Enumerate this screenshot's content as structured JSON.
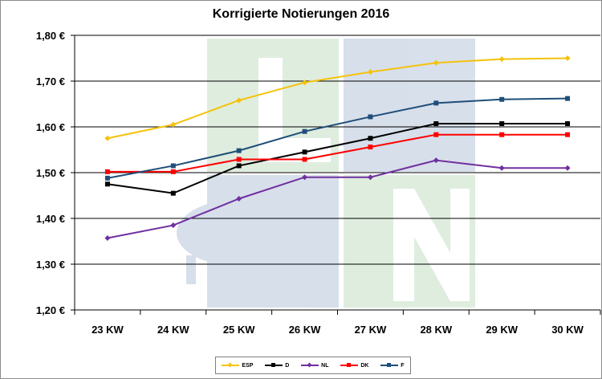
{
  "chart_data": {
    "type": "line",
    "title": "Korrigierte Notierungen 2016",
    "categories": [
      "23 KW",
      "24 KW",
      "25 KW",
      "26 KW",
      "27 KW",
      "28 KW",
      "29 KW",
      "30 KW"
    ],
    "ylim": [
      1.2,
      1.8
    ],
    "yticks": [
      "1,20 €",
      "1,30 €",
      "1,40 €",
      "1,50 €",
      "1,60 €",
      "1,70 €",
      "1,80 €"
    ],
    "grid": true,
    "legend_position": "bottom",
    "series": [
      {
        "name": "ESP",
        "color": "#F5C20A",
        "marker": "diamond",
        "values": [
          1.575,
          1.605,
          1.658,
          1.697,
          1.72,
          1.74,
          1.748,
          1.75
        ]
      },
      {
        "name": "D",
        "color": "#000000",
        "marker": "square",
        "values": [
          1.475,
          1.455,
          1.515,
          1.545,
          1.575,
          1.607,
          1.607,
          1.607
        ]
      },
      {
        "name": "NL",
        "color": "#7030A0",
        "marker": "diamond",
        "values": [
          1.357,
          1.385,
          1.443,
          1.49,
          1.49,
          1.527,
          1.51,
          1.51
        ]
      },
      {
        "name": "DK",
        "color": "#FF0000",
        "marker": "square",
        "values": [
          1.502,
          1.502,
          1.529,
          1.529,
          1.556,
          1.583,
          1.583,
          1.583
        ]
      },
      {
        "name": "F",
        "color": "#1F4E79",
        "marker": "square",
        "values": [
          1.488,
          1.515,
          1.548,
          1.59,
          1.622,
          1.652,
          1.66,
          1.662
        ]
      }
    ]
  }
}
